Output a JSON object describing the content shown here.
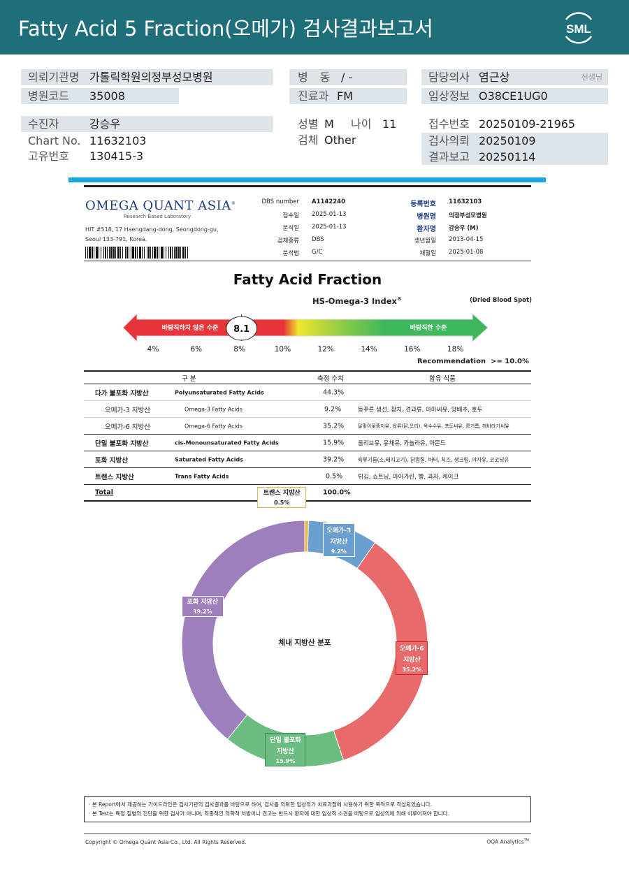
{
  "header": {
    "title": "Fatty Acid 5 Fraction(오메가) 검사결과보고서",
    "logo_text": "SML",
    "brand_color": "#1f6f7a"
  },
  "patient": {
    "institution_label": "의뢰기관명",
    "institution": "가톨릭학원의정부성모병원",
    "ward_label": "병 동",
    "ward": "/ -",
    "doctor_label": "담당의사",
    "doctor": "염근상",
    "doctor_suffix": "선생님",
    "hospital_code_label": "병원코드",
    "hospital_code": "35008",
    "department_label": "진료과",
    "department": "FM",
    "clinical_info_label": "임상정보",
    "clinical_info": "O38CE1UG0",
    "patient_name_label": "수진자",
    "patient_name": "강승우",
    "sex_label": "성별",
    "sex": "M",
    "age_label": "나이",
    "age": "11",
    "receipt_no_label": "접수번호",
    "receipt_no": "20250109-21965",
    "chart_no_label": "Chart No.",
    "chart_no": "11632103",
    "specimen_label": "검체",
    "specimen": "Other",
    "request_date_label": "검사의뢰",
    "request_date": "20250109",
    "unique_no_label": "고유번호",
    "unique_no": "130415-3",
    "report_date_label": "결과보고",
    "report_date": "20250114"
  },
  "report": {
    "lab_name": "OMEGA QUANT ASIA",
    "lab_tm": "®",
    "lab_sub": "Research Based Laboratory",
    "address_line1": "HIT #518, 17 Haengdang-dong, Seongdong-gu,",
    "address_line2": "Seoul 133-791, Korea.",
    "meta": {
      "dbs_number_label": "DBS number",
      "dbs_number": "A1142240",
      "receipt_date_label": "접수일",
      "receipt_date": "2025-01-13",
      "analysis_date_label": "분석일",
      "analysis_date": "2025-01-13",
      "specimen_type_label": "검체종류",
      "specimen_type": "DBS",
      "analysis_method_label": "분석법",
      "analysis_method": "G/C",
      "reg_no_label": "등록번호",
      "reg_no": "11632103",
      "hospital_label": "병원명",
      "hospital": "의정부성모병원",
      "patient_label": "환자명",
      "patient": "강승우 (M)",
      "birth_label": "생년월일",
      "birth": "2013-04-15",
      "draw_date_label": "채혈일",
      "draw_date": "2025-01-08"
    },
    "title": "Fatty Acid Fraction",
    "index_title": "HS-Omega-3 Index",
    "index_tm": "®",
    "specimen_note": "(Dried Blood Spot)",
    "gauge": {
      "value": 8.1,
      "value_label": "8.1",
      "bad_label": "바람직하지 않은 수준",
      "good_label": "바람직한 수준",
      "ticks": [
        "4%",
        "6%",
        "8%",
        "10%",
        "12%",
        "14%",
        "16%",
        "18%"
      ],
      "tick_values": [
        4,
        6,
        8,
        10,
        12,
        14,
        16,
        18
      ],
      "recommendation_label": "Recommendation",
      "recommendation_value": ">= 10.0%"
    },
    "table": {
      "headers": [
        "구 분",
        "측정 수치",
        "함유 식품"
      ],
      "rows": [
        {
          "ko": "다가 불포화 지방산",
          "en": "Polyunsaturated Fatty Acids",
          "value": "44.3%",
          "food": ""
        },
        {
          "ko": "오메가-3 지방산",
          "en": "Omega-3 Fatty Acids",
          "value": "9.2%",
          "food": "등푸른 생선, 참치, 견과류, 아마씨유, 양배추, 호두"
        },
        {
          "ko": "오메가-6 지방산",
          "en": "Omega-6 Fatty Acids",
          "value": "35.2%",
          "food": "달맞이꽃종자유, 육류(닭,오리), 옥수수유, 포도씨유, 콩기름, 해바라기씨유"
        },
        {
          "ko": "단일 불포화 지방산",
          "en": "cis-Monounsaturated Fatty Acids",
          "value": "15.9%",
          "food": "올리브유, 유채유, 카놀라유, 아몬드"
        },
        {
          "ko": "포화 지방산",
          "en": "Saturated Fatty Acids",
          "value": "39.2%",
          "food": "육류기름(소,돼지고기), 닭껍질, 버터, 치즈, 생크림, 야자유, 코코넛유"
        },
        {
          "ko": "트랜스 지방산",
          "en": "Trans Fatty Acids",
          "value": "0.5%",
          "food": "튀김, 쇼트닝, 마아가린, 빵, 과자, 케이크"
        },
        {
          "ko": "Total",
          "en": "",
          "value": "100.0%",
          "food": ""
        }
      ]
    }
  },
  "chart_data": {
    "type": "pie",
    "title": "체내 지방산 분포",
    "slices": [
      {
        "name": "트랜스 지방산",
        "value": 0.5,
        "label": "0.5%",
        "color": "#e8b84a"
      },
      {
        "name": "오메가-3 지방산",
        "value": 9.2,
        "label": "9.2%",
        "color": "#6a9fd0"
      },
      {
        "name": "오메가-6 지방산",
        "value": 35.2,
        "label": "35.2%",
        "color": "#e86a6a"
      },
      {
        "name": "단일 불포화 지방산",
        "value": 15.9,
        "label": "15.9%",
        "color": "#6cbd82"
      },
      {
        "name": "포화 지방산",
        "value": 39.2,
        "label": "39.2%",
        "color": "#9d7fbd"
      }
    ],
    "donut": true
  },
  "footer": {
    "notice_line1": "· 본 Report에서 제공하는 가이드라인은 검사기관의 검사결과를 바탕으로 하여, 검사를 의뢰한 임상의가 치료과정에 사용하기 위한 목적으로 작성되었습니다.",
    "notice_line2": "· 본 Test는 특정 질병의 진단을 위한 검사가 아니며, 최종적인 의학적 처방이나 권고는 반드시 환자에 대한 임상적 소견을 바탕으로 임상의에 의해 이루어져야 합니다.",
    "copyright": "Copyright © Omega Quant Asia Co., Ltd.  All Rights Reserved.",
    "analytics": "OQA Analytics",
    "analytics_tm": "TM"
  }
}
